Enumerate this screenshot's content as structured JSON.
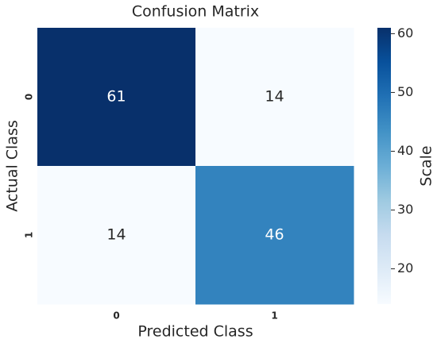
{
  "chart_data": {
    "type": "heatmap",
    "title": "Confusion Matrix",
    "xlabel": "Predicted Class",
    "ylabel": "Actual Class",
    "x_categories": [
      "0",
      "1"
    ],
    "y_categories": [
      "0",
      "1"
    ],
    "values": [
      [
        61,
        14
      ],
      [
        14,
        46
      ]
    ],
    "colorbar_label": "Scale",
    "clim": [
      14,
      61
    ],
    "cticks": [
      20,
      30,
      40,
      50,
      60
    ],
    "colormap": [
      "#f7fbff",
      "#deebf7",
      "#c6dbef",
      "#9ecae1",
      "#6baed6",
      "#4292c6",
      "#2171b5",
      "#08519c",
      "#08306b"
    ]
  }
}
